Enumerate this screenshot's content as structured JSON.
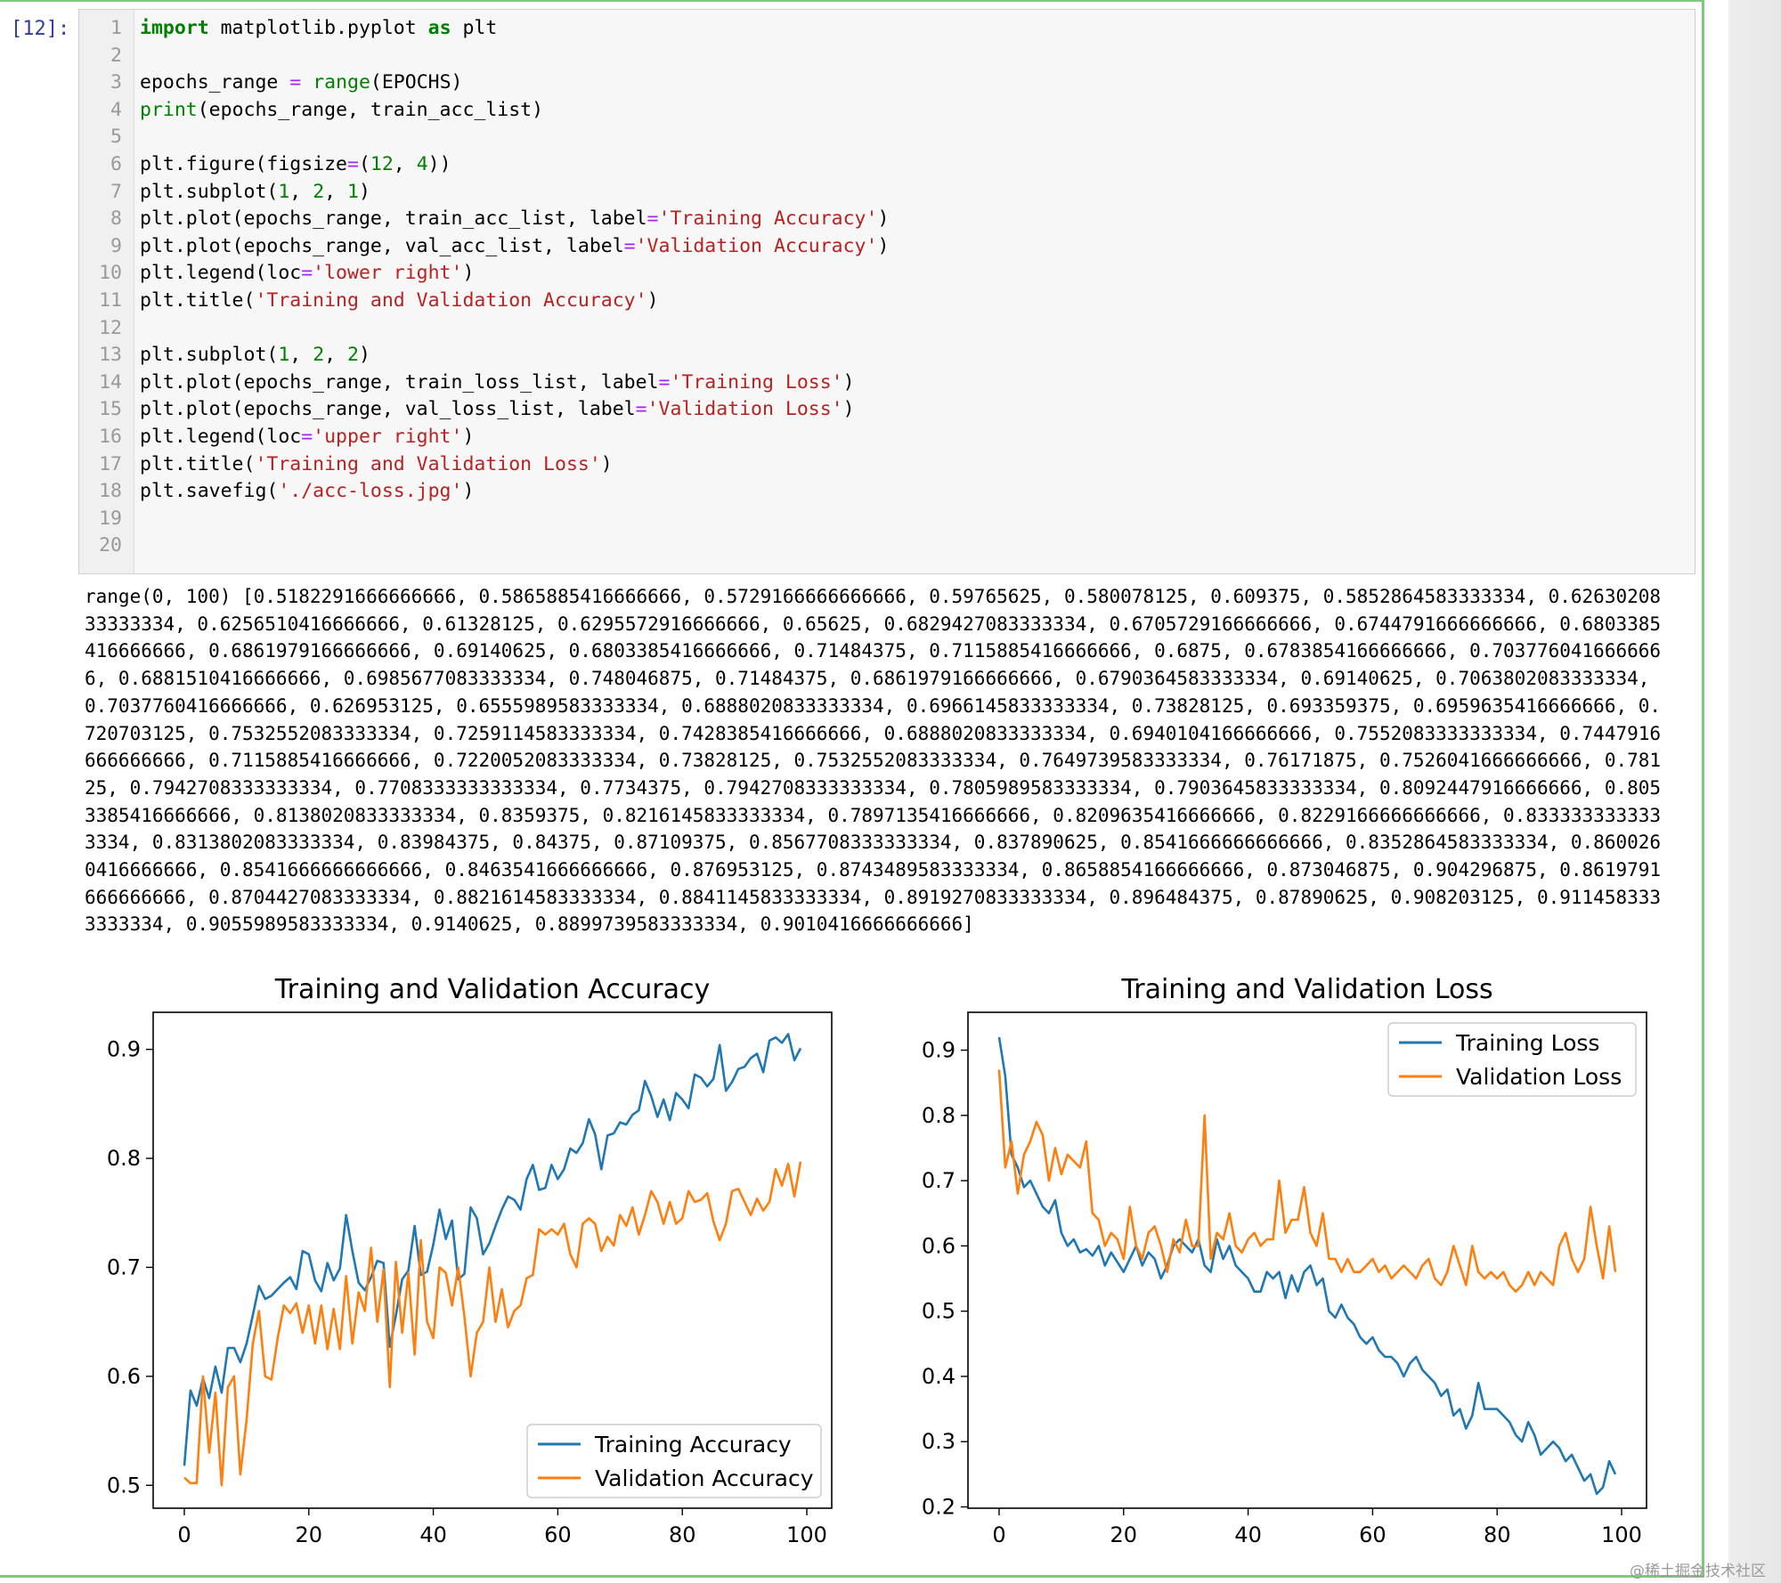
{
  "cell": {
    "prompt": "[12]:",
    "line_numbers": [
      "1",
      "2",
      "3",
      "4",
      "5",
      "6",
      "7",
      "8",
      "9",
      "10",
      "11",
      "12",
      "13",
      "14",
      "15",
      "16",
      "17",
      "18",
      "19",
      "20"
    ],
    "code_lines": [
      [
        {
          "t": "import",
          "c": "kw"
        },
        {
          "t": " matplotlib.pyplot ",
          "c": ""
        },
        {
          "t": "as",
          "c": "kw"
        },
        {
          "t": " plt",
          "c": ""
        }
      ],
      [],
      [
        {
          "t": "epochs_range ",
          "c": ""
        },
        {
          "t": "=",
          "c": "op"
        },
        {
          "t": " ",
          "c": ""
        },
        {
          "t": "range",
          "c": "bi"
        },
        {
          "t": "(EPOCHS)",
          "c": ""
        }
      ],
      [
        {
          "t": "print",
          "c": "bi"
        },
        {
          "t": "(epochs_range, train_acc_list)",
          "c": ""
        }
      ],
      [],
      [
        {
          "t": "plt.figure(figsize",
          "c": ""
        },
        {
          "t": "=",
          "c": "op"
        },
        {
          "t": "(",
          "c": ""
        },
        {
          "t": "12",
          "c": "num"
        },
        {
          "t": ", ",
          "c": ""
        },
        {
          "t": "4",
          "c": "num"
        },
        {
          "t": "))",
          "c": ""
        }
      ],
      [
        {
          "t": "plt.subplot(",
          "c": ""
        },
        {
          "t": "1",
          "c": "num"
        },
        {
          "t": ", ",
          "c": ""
        },
        {
          "t": "2",
          "c": "num"
        },
        {
          "t": ", ",
          "c": ""
        },
        {
          "t": "1",
          "c": "num"
        },
        {
          "t": ")",
          "c": ""
        }
      ],
      [
        {
          "t": "plt.plot(epochs_range, train_acc_list, label",
          "c": ""
        },
        {
          "t": "=",
          "c": "op"
        },
        {
          "t": "'Training Accuracy'",
          "c": "str"
        },
        {
          "t": ")",
          "c": ""
        }
      ],
      [
        {
          "t": "plt.plot(epochs_range, val_acc_list, label",
          "c": ""
        },
        {
          "t": "=",
          "c": "op"
        },
        {
          "t": "'Validation Accuracy'",
          "c": "str"
        },
        {
          "t": ")",
          "c": ""
        }
      ],
      [
        {
          "t": "plt.legend(loc",
          "c": ""
        },
        {
          "t": "=",
          "c": "op"
        },
        {
          "t": "'lower right'",
          "c": "str"
        },
        {
          "t": ")",
          "c": ""
        }
      ],
      [
        {
          "t": "plt.title(",
          "c": ""
        },
        {
          "t": "'Training and Validation Accuracy'",
          "c": "str"
        },
        {
          "t": ")",
          "c": ""
        }
      ],
      [],
      [
        {
          "t": "plt.subplot(",
          "c": ""
        },
        {
          "t": "1",
          "c": "num"
        },
        {
          "t": ", ",
          "c": ""
        },
        {
          "t": "2",
          "c": "num"
        },
        {
          "t": ", ",
          "c": ""
        },
        {
          "t": "2",
          "c": "num"
        },
        {
          "t": ")",
          "c": ""
        }
      ],
      [
        {
          "t": "plt.plot(epochs_range, train_loss_list, label",
          "c": ""
        },
        {
          "t": "=",
          "c": "op"
        },
        {
          "t": "'Training Loss'",
          "c": "str"
        },
        {
          "t": ")",
          "c": ""
        }
      ],
      [
        {
          "t": "plt.plot(epochs_range, val_loss_list, label",
          "c": ""
        },
        {
          "t": "=",
          "c": "op"
        },
        {
          "t": "'Validation Loss'",
          "c": "str"
        },
        {
          "t": ")",
          "c": ""
        }
      ],
      [
        {
          "t": "plt.legend(loc",
          "c": ""
        },
        {
          "t": "=",
          "c": "op"
        },
        {
          "t": "'upper right'",
          "c": "str"
        },
        {
          "t": ")",
          "c": ""
        }
      ],
      [
        {
          "t": "plt.title(",
          "c": ""
        },
        {
          "t": "'Training and Validation Loss'",
          "c": "str"
        },
        {
          "t": ")",
          "c": ""
        }
      ],
      [
        {
          "t": "plt.savefig(",
          "c": ""
        },
        {
          "t": "'./acc-loss.jpg'",
          "c": "str"
        },
        {
          "t": ")",
          "c": ""
        }
      ],
      [],
      []
    ],
    "output_text": "range(0, 100) [0.5182291666666666, 0.5865885416666666, 0.5729166666666666, 0.59765625, 0.580078125, 0.609375, 0.5852864583333334, 0.6263020833333334, 0.6256510416666666, 0.61328125, 0.6295572916666666, 0.65625, 0.6829427083333334, 0.6705729166666666, 0.6744791666666666, 0.6803385416666666, 0.6861979166666666, 0.69140625, 0.6803385416666666, 0.71484375, 0.7115885416666666, 0.6875, 0.6783854166666666, 0.7037760416666666, 0.6881510416666666, 0.6985677083333334, 0.748046875, 0.71484375, 0.6861979166666666, 0.6790364583333334, 0.69140625, 0.7063802083333334, 0.7037760416666666, 0.626953125, 0.6555989583333334, 0.6888020833333334, 0.6966145833333334, 0.73828125, 0.693359375, 0.6959635416666666, 0.720703125, 0.7532552083333334, 0.7259114583333334, 0.7428385416666666, 0.6888020833333334, 0.6940104166666666, 0.7552083333333334, 0.7447916666666666, 0.7115885416666666, 0.7220052083333334, 0.73828125, 0.7532552083333334, 0.7649739583333334, 0.76171875, 0.7526041666666666, 0.78125, 0.7942708333333334, 0.7708333333333334, 0.7734375, 0.7942708333333334, 0.7805989583333334, 0.7903645833333334, 0.8092447916666666, 0.8053385416666666, 0.8138020833333334, 0.8359375, 0.8216145833333334, 0.7897135416666666, 0.8209635416666666, 0.8229166666666666, 0.8333333333333334, 0.8313802083333334, 0.83984375, 0.84375, 0.87109375, 0.8567708333333334, 0.837890625, 0.8541666666666666, 0.8352864583333334, 0.8600260416666666, 0.8541666666666666, 0.8463541666666666, 0.876953125, 0.8743489583333334, 0.8658854166666666, 0.873046875, 0.904296875, 0.8619791666666666, 0.8704427083333334, 0.8821614583333334, 0.8841145833333334, 0.8919270833333334, 0.896484375, 0.87890625, 0.908203125, 0.9114583333333334, 0.9055989583333334, 0.9140625, 0.8899739583333334, 0.9010416666666666]"
  },
  "colors": {
    "train": "#1f77b4",
    "val": "#ff7f0e"
  },
  "watermark": "@稀土掘金技术社区",
  "chart_data": [
    {
      "type": "line",
      "title": "Training and Validation Accuracy",
      "xlabel": "",
      "ylabel": "",
      "xlim": [
        -5,
        104
      ],
      "ylim": [
        0.479,
        0.934
      ],
      "xticks": [
        0,
        20,
        40,
        60,
        80,
        100
      ],
      "yticks": [
        0.5,
        0.6,
        0.7,
        0.8,
        0.9
      ],
      "ytick_labels": [
        "0.5",
        "0.6",
        "0.7",
        "0.8",
        "0.9"
      ],
      "legend": "lower right",
      "series": [
        {
          "name": "Training Accuracy",
          "values": [
            0.518,
            0.587,
            0.573,
            0.598,
            0.58,
            0.609,
            0.585,
            0.626,
            0.626,
            0.613,
            0.63,
            0.656,
            0.683,
            0.671,
            0.674,
            0.68,
            0.686,
            0.691,
            0.68,
            0.715,
            0.712,
            0.688,
            0.678,
            0.704,
            0.688,
            0.699,
            0.748,
            0.715,
            0.686,
            0.679,
            0.691,
            0.706,
            0.704,
            0.627,
            0.656,
            0.689,
            0.697,
            0.738,
            0.693,
            0.696,
            0.721,
            0.753,
            0.726,
            0.743,
            0.689,
            0.694,
            0.755,
            0.745,
            0.712,
            0.722,
            0.738,
            0.753,
            0.765,
            0.762,
            0.753,
            0.781,
            0.794,
            0.771,
            0.773,
            0.794,
            0.781,
            0.79,
            0.809,
            0.805,
            0.814,
            0.836,
            0.822,
            0.79,
            0.821,
            0.823,
            0.833,
            0.831,
            0.84,
            0.844,
            0.871,
            0.857,
            0.838,
            0.854,
            0.835,
            0.86,
            0.854,
            0.846,
            0.877,
            0.874,
            0.866,
            0.873,
            0.904,
            0.862,
            0.87,
            0.882,
            0.884,
            0.892,
            0.896,
            0.879,
            0.908,
            0.911,
            0.906,
            0.914,
            0.89,
            0.901
          ]
        },
        {
          "name": "Validation Accuracy",
          "values": [
            0.507,
            0.502,
            0.502,
            0.6,
            0.53,
            0.585,
            0.5,
            0.59,
            0.6,
            0.51,
            0.56,
            0.63,
            0.66,
            0.6,
            0.597,
            0.635,
            0.665,
            0.658,
            0.667,
            0.64,
            0.665,
            0.63,
            0.665,
            0.625,
            0.662,
            0.625,
            0.692,
            0.63,
            0.677,
            0.66,
            0.718,
            0.65,
            0.698,
            0.59,
            0.705,
            0.64,
            0.695,
            0.62,
            0.725,
            0.65,
            0.635,
            0.7,
            0.695,
            0.665,
            0.7,
            0.655,
            0.6,
            0.64,
            0.65,
            0.7,
            0.65,
            0.68,
            0.645,
            0.66,
            0.665,
            0.69,
            0.693,
            0.735,
            0.73,
            0.735,
            0.73,
            0.74,
            0.712,
            0.7,
            0.74,
            0.745,
            0.74,
            0.715,
            0.728,
            0.72,
            0.748,
            0.738,
            0.755,
            0.73,
            0.748,
            0.77,
            0.76,
            0.74,
            0.76,
            0.74,
            0.745,
            0.77,
            0.76,
            0.762,
            0.768,
            0.742,
            0.725,
            0.74,
            0.77,
            0.772,
            0.76,
            0.748,
            0.763,
            0.752,
            0.76,
            0.79,
            0.775,
            0.795,
            0.765,
            0.797
          ]
        }
      ]
    },
    {
      "type": "line",
      "title": "Training and Validation Loss",
      "xlabel": "",
      "ylabel": "",
      "xlim": [
        -5,
        104
      ],
      "ylim": [
        0.198,
        0.958
      ],
      "xticks": [
        0,
        20,
        40,
        60,
        80,
        100
      ],
      "yticks": [
        0.2,
        0.3,
        0.4,
        0.5,
        0.6,
        0.7,
        0.8,
        0.9
      ],
      "ytick_labels": [
        "0.2",
        "0.3",
        "0.4",
        "0.5",
        "0.6",
        "0.7",
        "0.8",
        "0.9"
      ],
      "legend": "upper right",
      "series": [
        {
          "name": "Training Loss",
          "values": [
            0.92,
            0.86,
            0.74,
            0.72,
            0.69,
            0.7,
            0.68,
            0.66,
            0.65,
            0.67,
            0.62,
            0.6,
            0.61,
            0.59,
            0.595,
            0.585,
            0.6,
            0.57,
            0.59,
            0.575,
            0.56,
            0.58,
            0.6,
            0.57,
            0.59,
            0.58,
            0.55,
            0.57,
            0.6,
            0.61,
            0.6,
            0.59,
            0.61,
            0.57,
            0.56,
            0.61,
            0.58,
            0.6,
            0.57,
            0.56,
            0.55,
            0.53,
            0.53,
            0.56,
            0.55,
            0.56,
            0.52,
            0.555,
            0.53,
            0.56,
            0.57,
            0.54,
            0.55,
            0.5,
            0.49,
            0.51,
            0.49,
            0.48,
            0.46,
            0.45,
            0.46,
            0.44,
            0.43,
            0.43,
            0.42,
            0.4,
            0.42,
            0.43,
            0.41,
            0.4,
            0.39,
            0.37,
            0.38,
            0.34,
            0.35,
            0.32,
            0.34,
            0.39,
            0.35,
            0.35,
            0.35,
            0.34,
            0.33,
            0.31,
            0.3,
            0.33,
            0.31,
            0.28,
            0.29,
            0.3,
            0.29,
            0.27,
            0.28,
            0.26,
            0.24,
            0.25,
            0.22,
            0.23,
            0.27,
            0.25
          ]
        },
        {
          "name": "Validation Loss",
          "values": [
            0.87,
            0.72,
            0.76,
            0.68,
            0.74,
            0.76,
            0.79,
            0.77,
            0.7,
            0.75,
            0.71,
            0.74,
            0.73,
            0.72,
            0.76,
            0.65,
            0.64,
            0.6,
            0.62,
            0.61,
            0.58,
            0.66,
            0.6,
            0.58,
            0.62,
            0.63,
            0.6,
            0.56,
            0.61,
            0.59,
            0.64,
            0.6,
            0.6,
            0.8,
            0.58,
            0.62,
            0.61,
            0.65,
            0.6,
            0.59,
            0.61,
            0.62,
            0.6,
            0.61,
            0.61,
            0.7,
            0.62,
            0.64,
            0.64,
            0.69,
            0.62,
            0.6,
            0.65,
            0.58,
            0.58,
            0.56,
            0.58,
            0.56,
            0.56,
            0.57,
            0.58,
            0.56,
            0.57,
            0.55,
            0.56,
            0.57,
            0.56,
            0.55,
            0.57,
            0.58,
            0.55,
            0.54,
            0.56,
            0.6,
            0.57,
            0.54,
            0.6,
            0.56,
            0.55,
            0.56,
            0.55,
            0.56,
            0.54,
            0.53,
            0.54,
            0.56,
            0.54,
            0.56,
            0.55,
            0.54,
            0.6,
            0.62,
            0.58,
            0.56,
            0.58,
            0.66,
            0.6,
            0.55,
            0.63,
            0.56
          ]
        }
      ]
    }
  ]
}
